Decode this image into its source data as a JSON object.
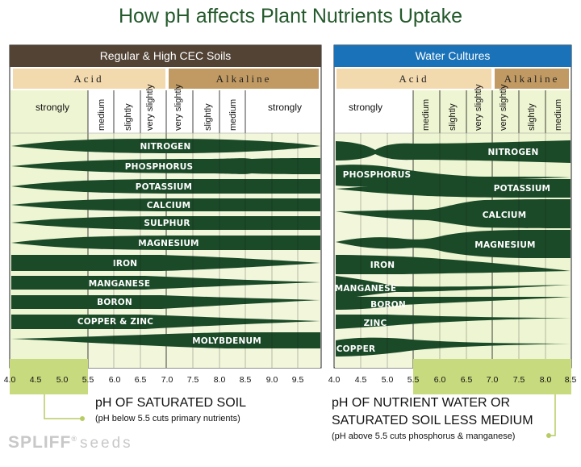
{
  "title": "How pH affects Plant Nutrients Uptake",
  "left_panel": {
    "header": "Regular & High CEC Soils",
    "acid_label": "Acid",
    "alkaline_label": "Alkaline",
    "strength_labels": [
      "strongly",
      "medium",
      "slightly",
      "very slightly",
      "very slightly",
      "slightly",
      "medium",
      "strongly"
    ],
    "nutrients": [
      "NITROGEN",
      "PHOSPHORUS",
      "POTASSIUM",
      "CALCIUM",
      "SULPHUR",
      "MAGNESIUM",
      "IRON",
      "MANGANESE",
      "BORON",
      "COPPER & ZINC",
      "MOLYBDENUM"
    ],
    "ticks": [
      "4.0",
      "4.5",
      "5.0",
      "5.5",
      "6.0",
      "6.5",
      "7.0",
      "7.5",
      "8.0",
      "8.5",
      "9.0",
      "9.5"
    ],
    "footer_title": "pH OF SATURATED SOIL",
    "footer_note": "(pH below 5.5 cuts primary nutrients)"
  },
  "right_panel": {
    "header": "Water Cultures",
    "acid_label": "Acid",
    "alkaline_label": "Alkaline",
    "strength_labels": [
      "strongly",
      "medium",
      "slightly",
      "very slightly",
      "very slightly",
      "slightly",
      "medium"
    ],
    "nutrients": [
      "NITROGEN",
      "PHOSPHORUS",
      "POTASSIUM",
      "CALCIUM",
      "MAGNESIUM",
      "IRON",
      "MANGANESE",
      "BORON",
      "ZINC",
      "COPPER"
    ],
    "ticks": [
      "4.0",
      "4.5",
      "5.0",
      "5.5",
      "6.0",
      "6.5",
      "7.0",
      "7.5",
      "8.0",
      "8.5"
    ],
    "footer_title_line1": "pH OF NUTRIENT WATER OR",
    "footer_title_line2": "SATURATED SOIL LESS MEDIUM",
    "footer_note": "(pH above 5.5 cuts phosphorus & manganese)"
  },
  "logo": {
    "brand": "SPLIFF",
    "reg": "®",
    "suffix": "seeds"
  },
  "colors": {
    "band_fill": "#1b4a28",
    "background_light": "#f2f7dc",
    "highlight": "#c8da7e",
    "left_header": "#524335",
    "right_header": "#1a72b8",
    "acid_tan": "#f3d9ae",
    "alkaline_brown": "#c19a63",
    "title_green": "#245a2c"
  }
}
